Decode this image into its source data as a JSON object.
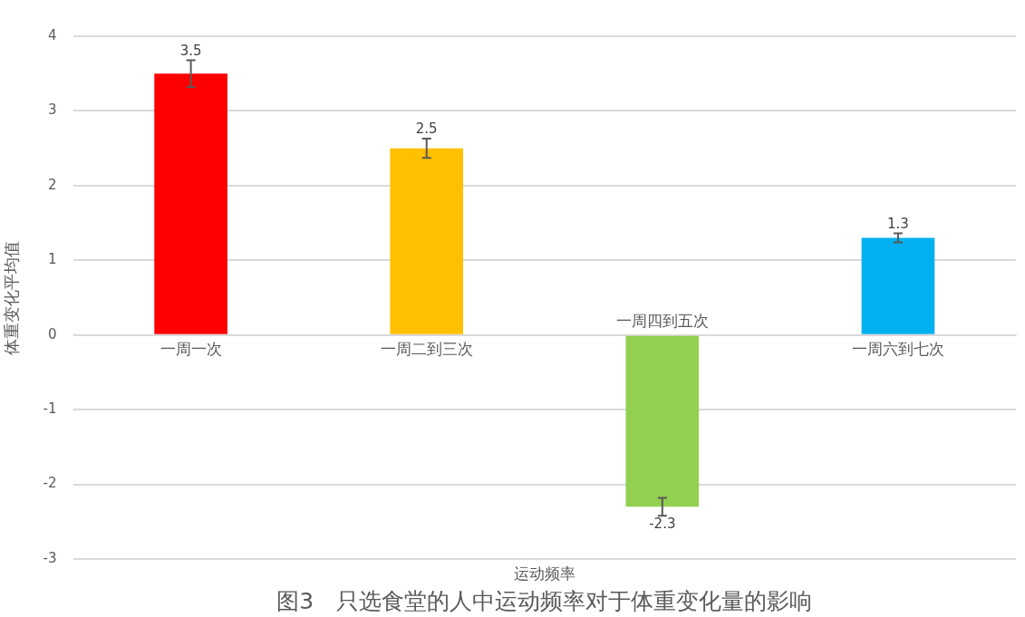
{
  "chart_data": {
    "type": "bar",
    "title": "图3　只选食堂的人中运动频率对于体重变化量的影响",
    "xlabel": "运动频率",
    "ylabel": "体重变化平均值",
    "categories": [
      "一周一次",
      "一周二到三次",
      "一周四到五次",
      "一周六到七次"
    ],
    "values": [
      3.5,
      2.5,
      -2.3,
      1.3
    ],
    "colors": [
      "#ff0000",
      "#ffc000",
      "#92d050",
      "#00b0f0"
    ],
    "errors": [
      0.18,
      0.13,
      0.12,
      0.06
    ],
    "ylim": [
      -3,
      4
    ],
    "yticks": [
      -3,
      -2,
      -1,
      0,
      1,
      2,
      3,
      4
    ],
    "grid": "y",
    "data_labels": true
  }
}
